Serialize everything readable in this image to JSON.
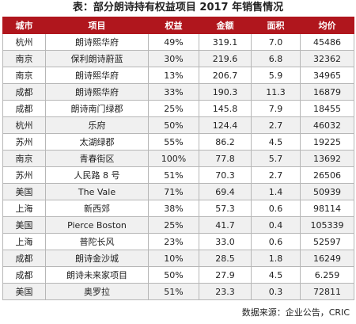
{
  "title": "表：部分朗诗持有权益项目 2017 年销售情况",
  "columns": [
    "城市",
    "项目",
    "权益",
    "金额",
    "面积",
    "均价"
  ],
  "rows": [
    [
      "杭州",
      "朗诗熙华府",
      "49%",
      "319.1",
      "7.0",
      "45486"
    ],
    [
      "南京",
      "保利朗诗蔚蓝",
      "30%",
      "219.6",
      "6.8",
      "32362"
    ],
    [
      "南京",
      "朗诗熙华府",
      "13%",
      "206.7",
      "5.9",
      "34965"
    ],
    [
      "成都",
      "朗诗熙华府",
      "33%",
      "190.3",
      "11.3",
      "16879"
    ],
    [
      "成都",
      "朗诗南门绿郡",
      "25%",
      "145.8",
      "7.9",
      "18455"
    ],
    [
      "杭州",
      "乐府",
      "50%",
      "124.4",
      "2.7",
      "46032"
    ],
    [
      "苏州",
      "太湖绿郡",
      "55%",
      "86.2",
      "4.5",
      "19225"
    ],
    [
      "南京",
      "青春街区",
      "100%",
      "77.8",
      "5.7",
      "13692"
    ],
    [
      "苏州",
      "人民路 8 号",
      "51%",
      "70.3",
      "2.7",
      "26506"
    ],
    [
      "美国",
      "The Vale",
      "71%",
      "69.4",
      "1.4",
      "50939"
    ],
    [
      "上海",
      "新西郊",
      "38%",
      "57.3",
      "0.6",
      "98114"
    ],
    [
      "美国",
      "Pierce Boston",
      "25%",
      "41.7",
      "0.4",
      "105339"
    ],
    [
      "上海",
      "普陀长风",
      "23%",
      "33.0",
      "0.6",
      "52597"
    ],
    [
      "成都",
      "朗诗金沙城",
      "10%",
      "28.5",
      "1.8",
      "16249"
    ],
    [
      "成都",
      "朗诗未来家项目",
      "50%",
      "27.9",
      "4.5",
      "6.259"
    ],
    [
      "美国",
      "奥罗拉",
      "51%",
      "23.3",
      "0.3",
      "72811"
    ]
  ],
  "source": "数据来源：企业公告，CRIC",
  "colors": {
    "header_bg": "#b0161d",
    "header_text": "#ffffff",
    "stripe": "#f0f0f0"
  }
}
